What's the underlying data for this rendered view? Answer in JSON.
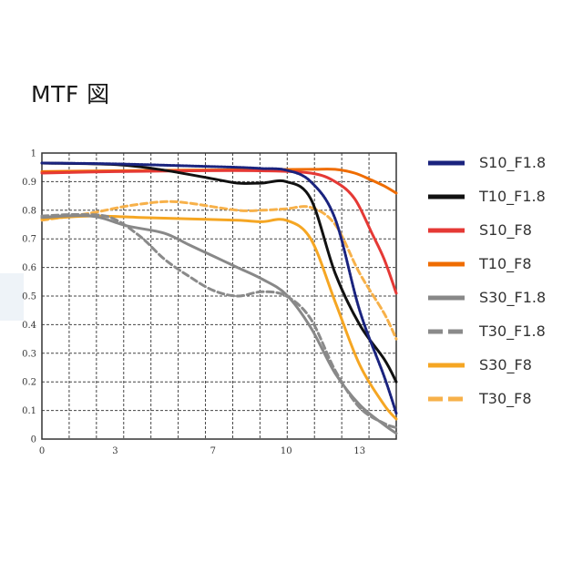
{
  "page": {
    "title": "MTF 図"
  },
  "chart_data": {
    "type": "line",
    "title": "MTF 図",
    "xlabel": "",
    "ylabel": "",
    "xlim": [
      0,
      14.5
    ],
    "ylim": [
      0,
      1
    ],
    "x_ticks": [
      0,
      3,
      7,
      10,
      13
    ],
    "x_tick_labels": [
      "0",
      "3",
      "7",
      "10",
      "13"
    ],
    "y_ticks": [
      0,
      0.1,
      0.2,
      0.3,
      0.4,
      0.5,
      0.6,
      0.7,
      0.8,
      0.9,
      1
    ],
    "y_tick_labels": [
      "0",
      "0.1",
      "0.2",
      "0.3",
      "0.4",
      "0.5",
      "0.6",
      "0.7",
      "0.8",
      "0.9",
      "1"
    ],
    "grid": true,
    "legend_position": "right",
    "series": [
      {
        "name": "S10_F1.8",
        "color": "#1a237e",
        "dash": "dotted",
        "points": [
          [
            0,
            0.965
          ],
          [
            3,
            0.962
          ],
          [
            6,
            0.955
          ],
          [
            8,
            0.95
          ],
          [
            9,
            0.946
          ],
          [
            10,
            0.94
          ],
          [
            11,
            0.9
          ],
          [
            12,
            0.77
          ],
          [
            13,
            0.45
          ],
          [
            14,
            0.22
          ],
          [
            14.5,
            0.09
          ]
        ]
      },
      {
        "name": "T10_F1.8",
        "color": "#111111",
        "dash": "solid",
        "points": [
          [
            0,
            0.965
          ],
          [
            3,
            0.96
          ],
          [
            5,
            0.94
          ],
          [
            7,
            0.91
          ],
          [
            8,
            0.895
          ],
          [
            9,
            0.895
          ],
          [
            10,
            0.9
          ],
          [
            11,
            0.84
          ],
          [
            12,
            0.58
          ],
          [
            13,
            0.4
          ],
          [
            14,
            0.28
          ],
          [
            14.5,
            0.2
          ]
        ]
      },
      {
        "name": "S10_F8",
        "color": "#e53935",
        "dash": "solid",
        "points": [
          [
            0,
            0.93
          ],
          [
            3,
            0.935
          ],
          [
            6,
            0.938
          ],
          [
            9,
            0.938
          ],
          [
            11,
            0.93
          ],
          [
            12,
            0.9
          ],
          [
            12.8,
            0.84
          ],
          [
            13.5,
            0.72
          ],
          [
            14,
            0.63
          ],
          [
            14.5,
            0.51
          ]
        ]
      },
      {
        "name": "T10_F8",
        "color": "#ef6c00",
        "dash": "solid",
        "points": [
          [
            0,
            0.935
          ],
          [
            3,
            0.938
          ],
          [
            6,
            0.94
          ],
          [
            9,
            0.942
          ],
          [
            11,
            0.943
          ],
          [
            12,
            0.943
          ],
          [
            12.8,
            0.93
          ],
          [
            13.5,
            0.905
          ],
          [
            14,
            0.885
          ],
          [
            14.5,
            0.86
          ]
        ]
      },
      {
        "name": "S30_F1.8",
        "color": "#888888",
        "dash": "solid",
        "points": [
          [
            0,
            0.775
          ],
          [
            2,
            0.78
          ],
          [
            3.5,
            0.745
          ],
          [
            5,
            0.72
          ],
          [
            6,
            0.68
          ],
          [
            7,
            0.64
          ],
          [
            8,
            0.6
          ],
          [
            9,
            0.56
          ],
          [
            10,
            0.505
          ],
          [
            11,
            0.39
          ],
          [
            12,
            0.23
          ],
          [
            13,
            0.12
          ],
          [
            14,
            0.05
          ],
          [
            14.5,
            0.02
          ]
        ]
      },
      {
        "name": "T30_F1.8",
        "color": "#8a8a8a",
        "dash": "dashed",
        "points": [
          [
            0,
            0.78
          ],
          [
            1.5,
            0.785
          ],
          [
            2.8,
            0.775
          ],
          [
            4,
            0.71
          ],
          [
            5,
            0.63
          ],
          [
            6,
            0.57
          ],
          [
            7,
            0.52
          ],
          [
            8,
            0.5
          ],
          [
            9,
            0.515
          ],
          [
            10,
            0.5
          ],
          [
            11,
            0.42
          ],
          [
            12,
            0.24
          ],
          [
            13,
            0.11
          ],
          [
            14,
            0.055
          ],
          [
            14.5,
            0.04
          ]
        ]
      },
      {
        "name": "S30_F8",
        "color": "#f5a623",
        "dash": "solid",
        "points": [
          [
            0,
            0.77
          ],
          [
            2,
            0.78
          ],
          [
            4,
            0.775
          ],
          [
            6,
            0.77
          ],
          [
            8,
            0.765
          ],
          [
            9,
            0.76
          ],
          [
            10,
            0.765
          ],
          [
            11,
            0.7
          ],
          [
            12,
            0.48
          ],
          [
            13,
            0.26
          ],
          [
            14,
            0.12
          ],
          [
            14.5,
            0.07
          ]
        ]
      },
      {
        "name": "T30_F8",
        "color": "#f7b14a",
        "dash": "dashed",
        "points": [
          [
            0,
            0.765
          ],
          [
            2,
            0.79
          ],
          [
            3.5,
            0.815
          ],
          [
            5,
            0.83
          ],
          [
            6,
            0.825
          ],
          [
            8,
            0.8
          ],
          [
            9,
            0.8
          ],
          [
            10,
            0.805
          ],
          [
            11,
            0.81
          ],
          [
            12,
            0.75
          ],
          [
            13,
            0.58
          ],
          [
            14,
            0.44
          ],
          [
            14.5,
            0.35
          ]
        ]
      }
    ]
  }
}
